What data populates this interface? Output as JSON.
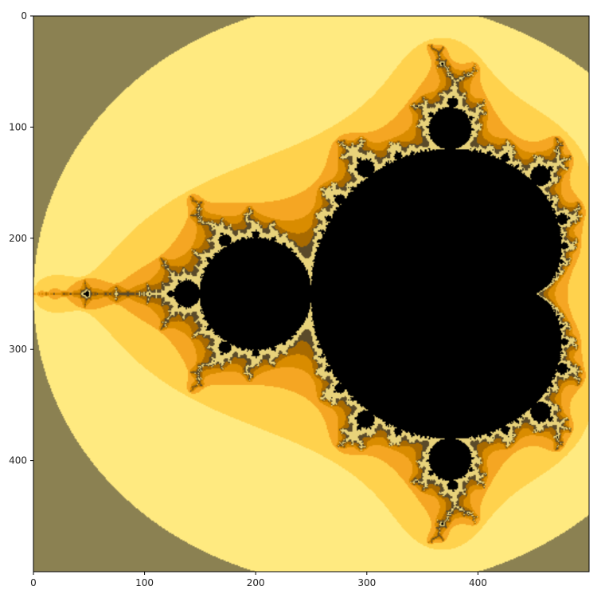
{
  "chart_data": {
    "type": "heatmap",
    "title": "",
    "xlabel": "",
    "ylabel": "",
    "xlim": [
      0,
      500
    ],
    "ylim": [
      500,
      0
    ],
    "x_ticks": [
      0,
      100,
      200,
      300,
      400
    ],
    "y_ticks": [
      0,
      100,
      200,
      300,
      400
    ],
    "x_tick_labels": [
      "0",
      "100",
      "200",
      "300",
      "400"
    ],
    "y_tick_labels": [
      "0",
      "100",
      "200",
      "300",
      "400"
    ],
    "grid": false,
    "legend": "none",
    "image": {
      "description_type": "Mandelbrot set escape-time image",
      "columns": 500,
      "rows": 500,
      "real_range": [
        -2.0,
        0.5
      ],
      "imag_range": [
        -1.25,
        1.25
      ],
      "max_iter": 200,
      "colormap": [
        "#8b8152",
        "#ffea80",
        "#ffd24d",
        "#f5a623",
        "#d98c00",
        "#a86a00",
        "#5a4a2a",
        "#e8d27a",
        "#000000"
      ]
    }
  }
}
